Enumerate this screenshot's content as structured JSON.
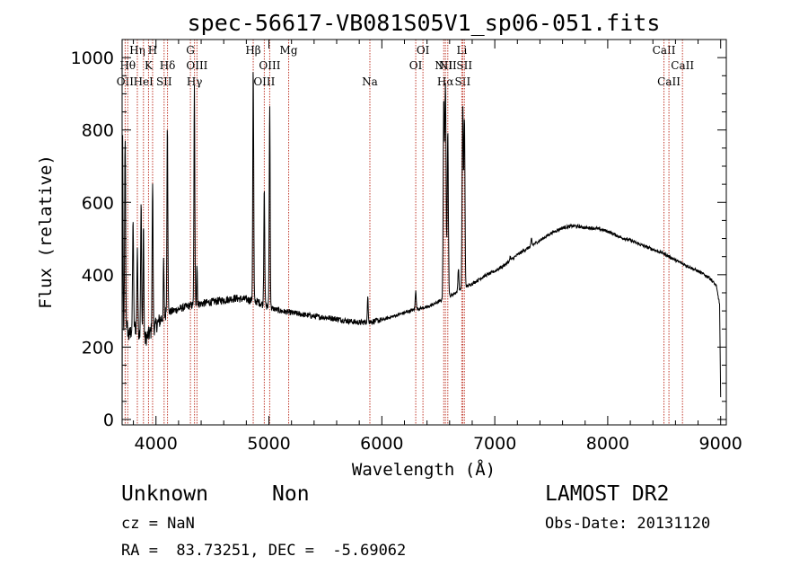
{
  "chart_data": {
    "type": "line",
    "title": "spec-56617-VB081S05V1_sp06-051.fits",
    "xlabel": "Wavelength (Å)",
    "ylabel": "Flux (relative)",
    "xlim": [
      3700,
      9050
    ],
    "ylim": [
      -15,
      1050
    ],
    "x_ticks": [
      4000,
      5000,
      6000,
      7000,
      8000,
      9000
    ],
    "y_ticks": [
      0,
      200,
      400,
      600,
      800,
      1000
    ],
    "grid": false,
    "series": [
      {
        "continuum": [
          [
            3700,
            10
          ],
          [
            3705,
            780
          ],
          [
            3712,
            250
          ],
          [
            3730,
            280
          ],
          [
            3760,
            230
          ],
          [
            3800,
            260
          ],
          [
            3850,
            240
          ],
          [
            3900,
            220
          ],
          [
            3950,
            240
          ],
          [
            4000,
            260
          ],
          [
            4050,
            280
          ],
          [
            4100,
            295
          ],
          [
            4150,
            300
          ],
          [
            4200,
            305
          ],
          [
            4300,
            315
          ],
          [
            4400,
            320
          ],
          [
            4500,
            325
          ],
          [
            4600,
            330
          ],
          [
            4700,
            335
          ],
          [
            4800,
            332
          ],
          [
            4900,
            325
          ],
          [
            5000,
            310
          ],
          [
            5100,
            300
          ],
          [
            5200,
            295
          ],
          [
            5300,
            290
          ],
          [
            5400,
            285
          ],
          [
            5500,
            282
          ],
          [
            5600,
            278
          ],
          [
            5700,
            272
          ],
          [
            5800,
            268
          ],
          [
            5900,
            270
          ],
          [
            6000,
            275
          ],
          [
            6100,
            285
          ],
          [
            6200,
            295
          ],
          [
            6300,
            305
          ],
          [
            6400,
            310
          ],
          [
            6500,
            325
          ],
          [
            6600,
            340
          ],
          [
            6700,
            360
          ],
          [
            6800,
            375
          ],
          [
            6900,
            395
          ],
          [
            7000,
            410
          ],
          [
            7100,
            430
          ],
          [
            7200,
            455
          ],
          [
            7300,
            475
          ],
          [
            7400,
            495
          ],
          [
            7500,
            515
          ],
          [
            7600,
            530
          ],
          [
            7700,
            535
          ],
          [
            7800,
            530
          ],
          [
            7900,
            528
          ],
          [
            8000,
            520
          ],
          [
            8100,
            505
          ],
          [
            8200,
            495
          ],
          [
            8300,
            482
          ],
          [
            8400,
            470
          ],
          [
            8500,
            458
          ],
          [
            8600,
            440
          ],
          [
            8700,
            425
          ],
          [
            8800,
            410
          ],
          [
            8900,
            392
          ],
          [
            8960,
            370
          ],
          [
            8990,
            320
          ],
          [
            9000,
            60
          ]
        ],
        "emission_lines": [
          {
            "x": 3727,
            "peak": 780,
            "width": 4
          },
          {
            "x": 3797,
            "peak": 560,
            "width": 4
          },
          {
            "x": 3835,
            "peak": 480,
            "width": 4
          },
          {
            "x": 3868,
            "peak": 610,
            "width": 4
          },
          {
            "x": 3889,
            "peak": 540,
            "width": 4
          },
          {
            "x": 3970,
            "peak": 660,
            "width": 4
          },
          {
            "x": 4068,
            "peak": 440,
            "width": 3
          },
          {
            "x": 4101,
            "peak": 825,
            "width": 4
          },
          {
            "x": 4340,
            "peak": 920,
            "width": 4
          },
          {
            "x": 4363,
            "peak": 430,
            "width": 3
          },
          {
            "x": 4861,
            "peak": 975,
            "width": 4
          },
          {
            "x": 4959,
            "peak": 650,
            "width": 4
          },
          {
            "x": 5007,
            "peak": 870,
            "width": 4
          },
          {
            "x": 5876,
            "peak": 340,
            "width": 4
          },
          {
            "x": 6300,
            "peak": 360,
            "width": 4
          },
          {
            "x": 6548,
            "peak": 860,
            "width": 5
          },
          {
            "x": 6563,
            "peak": 920,
            "width": 6
          },
          {
            "x": 6584,
            "peak": 800,
            "width": 5
          },
          {
            "x": 6678,
            "peak": 420,
            "width": 4
          },
          {
            "x": 6716,
            "peak": 870,
            "width": 5
          },
          {
            "x": 6731,
            "peak": 830,
            "width": 5
          },
          {
            "x": 7065,
            "peak": 420,
            "width": 4
          },
          {
            "x": 7136,
            "peak": 450,
            "width": 4
          },
          {
            "x": 7325,
            "peak": 500,
            "width": 4
          }
        ]
      }
    ],
    "line_markers": [
      {
        "x": 3727,
        "label": "OII",
        "row": 3
      },
      {
        "x": 3750,
        "label": "Hθ",
        "row": 2
      },
      {
        "x": 3835,
        "label": "Hη",
        "row": 1
      },
      {
        "x": 3889,
        "label": "HeI",
        "row": 3
      },
      {
        "x": 3934,
        "label": "K",
        "row": 2
      },
      {
        "x": 3970,
        "label": "H",
        "row": 1
      },
      {
        "x": 4072,
        "label": "SII",
        "row": 3
      },
      {
        "x": 4102,
        "label": "Hδ",
        "row": 2
      },
      {
        "x": 4305,
        "label": "G",
        "row": 1
      },
      {
        "x": 4341,
        "label": "Hγ",
        "row": 3
      },
      {
        "x": 4363,
        "label": "OIII",
        "row": 2
      },
      {
        "x": 4861,
        "label": "Hβ",
        "row": 1
      },
      {
        "x": 4959,
        "label": "OIII",
        "row": 3
      },
      {
        "x": 5007,
        "label": "OIII",
        "row": 2
      },
      {
        "x": 5175,
        "label": "Mg",
        "row": 1
      },
      {
        "x": 5894,
        "label": "Na",
        "row": 3
      },
      {
        "x": 6300,
        "label": "OI",
        "row": 2
      },
      {
        "x": 6364,
        "label": "OI",
        "row": 1
      },
      {
        "x": 6548,
        "label": "NII",
        "row": 2
      },
      {
        "x": 6563,
        "label": "Hα",
        "row": 3
      },
      {
        "x": 6584,
        "label": "NII",
        "row": 2
      },
      {
        "x": 6708,
        "label": "Li",
        "row": 1
      },
      {
        "x": 6716,
        "label": "SII",
        "row": 3
      },
      {
        "x": 6731,
        "label": "SII",
        "row": 2
      },
      {
        "x": 8498,
        "label": "CaII",
        "row": 1
      },
      {
        "x": 8542,
        "label": "CaII",
        "row": 3
      },
      {
        "x": 8662,
        "label": "CaII",
        "row": 2
      }
    ]
  },
  "colors": {
    "spectrum": "#000000",
    "marker_line": "#c0392b",
    "background": "#ffffff"
  },
  "footer": {
    "class_text": "Unknown",
    "subclass_text": "Non",
    "survey_text": "LAMOST DR2",
    "cz_text": "cz = NaN",
    "obs_date_text": "Obs-Date: 20131120",
    "radec_text": "RA =  83.73251, DEC =  -5.69062"
  }
}
